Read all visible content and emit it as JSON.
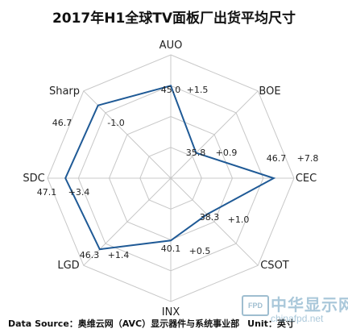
{
  "chart_data": {
    "type": "radar",
    "title": "2017年H1全球TV面板厂出货平均尺寸",
    "axes": [
      "AUO",
      "BOE",
      "CEC",
      "CSOT",
      "INX",
      "LGD",
      "SDC",
      "Sharp"
    ],
    "values": [
      45.0,
      35.8,
      46.7,
      38.3,
      40.1,
      46.3,
      47.1,
      46.7
    ],
    "value_labels": [
      "45.0",
      "35.8",
      "46.7",
      "38.3",
      "40.1",
      "46.3",
      "47.1",
      "46.7"
    ],
    "changes": [
      "+1.5",
      "+0.9",
      "+7.8",
      "+1.0",
      "+0.5",
      "+1.4",
      "+3.4",
      "-1.0"
    ],
    "line_color": "#1f5a96",
    "grid_color": "#c8c8c8"
  },
  "footer": {
    "source_label": "Data Source：奥维云网（AVC）显示器件与系统事业部",
    "unit_label": "Unit：英寸"
  },
  "watermark": {
    "badge": "FPD",
    "name": "中华显示网",
    "url": "chinafpd.net"
  }
}
